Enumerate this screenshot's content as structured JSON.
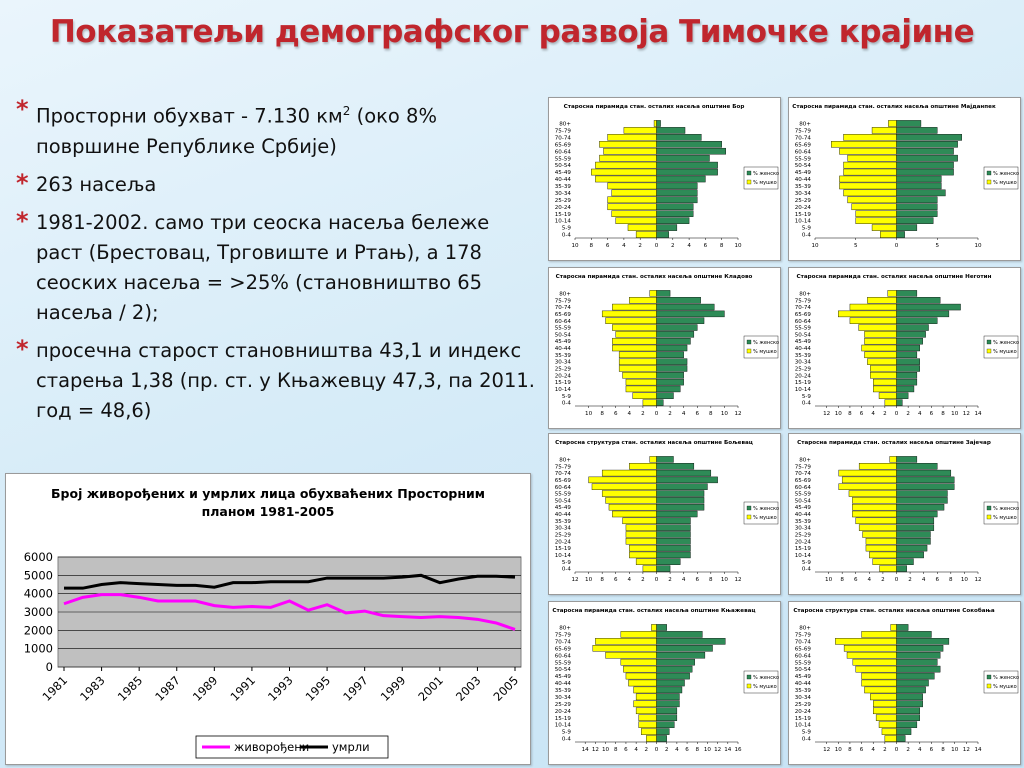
{
  "slide": {
    "title": "Показатељи демографског развоја Тимочке крајине",
    "bullets": [
      {
        "main": "Просторни обухват - 7.130 км",
        "sup": "2",
        "rest": " (око 8% површине Републике Србије)"
      },
      {
        "main": "263 насеља",
        "sup": "",
        "rest": ""
      },
      {
        "main": "1981-2002. само три сеоска насеља бележе раст (Брестовац, Трговиште и Ртањ), а 178 сеоских насеља = >25% (становништво 65 насеља / 2);",
        "sup": "",
        "rest": ""
      },
      {
        "main": "просечна старост становништва 43,1 и индекс старења 1,38 (пр. ст. у Књажевцу 47,3, па 2011. год = 48,6)",
        "sup": "",
        "rest": ""
      }
    ]
  },
  "colors": {
    "title": "#c0262d",
    "zensko": "#2e8b57",
    "musko": "#ffff00",
    "zivorodjeni": "#ff00ff",
    "umrli": "#000000",
    "plot_bg": "#c0c0c0"
  },
  "chart_data": [
    {
      "type": "line",
      "title": "Број живорођених и умрлих лица обухваћених Просторним планом 1981-2005",
      "x": [
        1981,
        1982,
        1983,
        1984,
        1985,
        1986,
        1987,
        1988,
        1989,
        1990,
        1991,
        1992,
        1993,
        1994,
        1995,
        1996,
        1997,
        1998,
        1999,
        2000,
        2001,
        2002,
        2003,
        2004,
        2005
      ],
      "xticks": [
        "1981",
        "1983",
        "1985",
        "1987",
        "1989",
        "1991",
        "1993",
        "1995",
        "1997",
        "1999",
        "2001",
        "2003",
        "2005"
      ],
      "ylim": [
        0,
        6000
      ],
      "yticks": [
        "0",
        "1000",
        "2000",
        "3000",
        "4000",
        "5000",
        "6000"
      ],
      "grid": true,
      "legend": "bottom",
      "series": [
        {
          "name": "живорођени",
          "color": "#ff00ff",
          "values": [
            3450,
            3800,
            3950,
            3950,
            3800,
            3600,
            3600,
            3600,
            3350,
            3250,
            3300,
            3250,
            3600,
            3100,
            3400,
            2950,
            3050,
            2800,
            2750,
            2700,
            2750,
            2700,
            2600,
            2400,
            2050
          ]
        },
        {
          "name": "умрли",
          "color": "#000000",
          "values": [
            4300,
            4300,
            4500,
            4600,
            4550,
            4500,
            4450,
            4450,
            4350,
            4600,
            4600,
            4650,
            4650,
            4650,
            4850,
            4850,
            4850,
            4850,
            4900,
            5000,
            4600,
            4800,
            4950,
            4950,
            4900
          ]
        }
      ]
    },
    {
      "type": "bar",
      "title": "Старосна пирамида стан. осталих насеља општине Бор",
      "categories": [
        "80+",
        "75-79",
        "70-74",
        "65-69",
        "60-64",
        "55-59",
        "50-54",
        "45-49",
        "40-44",
        "35-39",
        "30-34",
        "25-29",
        "20-24",
        "15-19",
        "10-14",
        "5-9",
        "0-4"
      ],
      "xticks": [
        "10",
        "8",
        "6",
        "4",
        "2",
        "0",
        "2",
        "4",
        "6",
        "8",
        "10"
      ],
      "xmax": 10,
      "series": [
        {
          "name": "% женско",
          "color": "#2e8b57",
          "values": [
            0.5,
            3.5,
            5.5,
            8.0,
            8.5,
            6.5,
            7.5,
            7.5,
            6.0,
            5.0,
            5.0,
            5.0,
            4.5,
            4.5,
            4.0,
            2.5,
            1.5
          ]
        },
        {
          "name": "% мушко",
          "color": "#ffff00",
          "values": [
            0.3,
            4.0,
            6.0,
            7.0,
            6.5,
            7.0,
            7.5,
            8.0,
            7.5,
            6.0,
            5.5,
            6.0,
            6.0,
            5.5,
            5.0,
            3.5,
            2.5
          ]
        }
      ]
    },
    {
      "type": "bar",
      "title": "Старосна пирамида стан. осталих насеља општине Мајданпек",
      "categories": [
        "80+",
        "75-79",
        "70-74",
        "65-69",
        "60-64",
        "55-59",
        "50-54",
        "45-49",
        "40-44",
        "35-39",
        "30-34",
        "25-29",
        "20-24",
        "15-19",
        "10-14",
        "5-9",
        "0-4"
      ],
      "xticks": [
        "10",
        "5",
        "0",
        "5",
        "10"
      ],
      "xmax": 10,
      "series": [
        {
          "name": "% женско",
          "color": "#2e8b57",
          "values": [
            3.0,
            5.0,
            8.0,
            7.5,
            7.0,
            7.5,
            7.0,
            7.0,
            5.5,
            5.5,
            6.0,
            5.0,
            5.0,
            5.0,
            4.5,
            2.5,
            1.0
          ]
        },
        {
          "name": "% мушко",
          "color": "#ffff00",
          "values": [
            1.0,
            3.0,
            6.5,
            8.0,
            7.0,
            6.0,
            6.5,
            6.5,
            7.0,
            7.0,
            6.5,
            6.0,
            5.5,
            5.0,
            5.0,
            3.0,
            2.0
          ]
        }
      ]
    },
    {
      "type": "bar",
      "title": "Старосна пирамида стан. осталих насеља општине Кладово",
      "categories": [
        "80+",
        "75-79",
        "70-74",
        "65-69",
        "60-64",
        "55-59",
        "50-54",
        "45-49",
        "40-44",
        "35-39",
        "30-34",
        "25-29",
        "20-24",
        "15-19",
        "10-14",
        "5-9",
        "0-4"
      ],
      "xticks": [
        "10",
        "8",
        "6",
        "4",
        "2",
        "0",
        "2",
        "4",
        "6",
        "8",
        "10",
        "12"
      ],
      "xmax": 12,
      "series": [
        {
          "name": "% женско",
          "color": "#2e8b57",
          "values": [
            2.0,
            6.5,
            8.5,
            10.0,
            7.0,
            6.0,
            5.5,
            5.0,
            4.5,
            4.0,
            4.5,
            4.5,
            4.0,
            4.0,
            3.5,
            2.5,
            1.0
          ]
        },
        {
          "name": "% мушко",
          "color": "#ffff00",
          "values": [
            1.0,
            4.0,
            6.5,
            8.0,
            7.5,
            6.5,
            6.0,
            6.5,
            6.5,
            5.5,
            5.5,
            5.5,
            5.0,
            4.5,
            4.5,
            3.5,
            2.0
          ]
        }
      ]
    },
    {
      "type": "bar",
      "title": "Старосна пирамида стан. осталих насеља општине Неготин",
      "categories": [
        "80+",
        "75-79",
        "70-74",
        "65-69",
        "60-64",
        "55-59",
        "50-54",
        "45-49",
        "40-44",
        "35-39",
        "30-34",
        "25-29",
        "20-24",
        "15-19",
        "10-14",
        "5-9",
        "0-4"
      ],
      "xticks": [
        "12",
        "10",
        "8",
        "6",
        "4",
        "2",
        "0",
        "2",
        "4",
        "6",
        "8",
        "10",
        "12",
        "14"
      ],
      "xmax": 14,
      "series": [
        {
          "name": "% женско",
          "color": "#2e8b57",
          "values": [
            3.5,
            7.5,
            11.0,
            9.0,
            7.0,
            5.5,
            5.0,
            4.5,
            4.0,
            3.5,
            4.0,
            4.0,
            3.5,
            3.5,
            3.0,
            2.0,
            1.0
          ]
        },
        {
          "name": "% мушко",
          "color": "#ffff00",
          "values": [
            1.5,
            5.0,
            8.0,
            10.0,
            8.0,
            6.5,
            5.5,
            5.5,
            6.0,
            5.5,
            5.0,
            4.5,
            4.5,
            4.0,
            4.0,
            3.0,
            2.0
          ]
        }
      ]
    },
    {
      "type": "bar",
      "title": "Старосна структура стан. осталих насеља општине Бољевац",
      "categories": [
        "80+",
        "75-79",
        "70-74",
        "65-69",
        "60-64",
        "55-59",
        "50-54",
        "45-49",
        "40-44",
        "35-39",
        "30-34",
        "25-29",
        "20-24",
        "15-19",
        "10-14",
        "5-9",
        "0-4"
      ],
      "xticks": [
        "12",
        "10",
        "8",
        "6",
        "4",
        "2",
        "0",
        "2",
        "4",
        "6",
        "8",
        "10",
        "12"
      ],
      "xmax": 12,
      "series": [
        {
          "name": "% женско",
          "color": "#2e8b57",
          "values": [
            2.5,
            5.5,
            8.0,
            9.0,
            7.5,
            7.0,
            7.0,
            7.0,
            6.0,
            5.0,
            5.0,
            5.0,
            5.0,
            5.0,
            5.0,
            3.5,
            2.0
          ]
        },
        {
          "name": "% мушко",
          "color": "#ffff00",
          "values": [
            1.0,
            4.0,
            8.0,
            10.0,
            9.5,
            8.0,
            7.5,
            7.0,
            6.5,
            5.0,
            4.5,
            4.5,
            4.5,
            4.0,
            4.0,
            3.0,
            2.0
          ]
        }
      ]
    },
    {
      "type": "bar",
      "title": "Старосна пирамида стан. осталих насеља општине Зајечар",
      "categories": [
        "80+",
        "75-79",
        "70-74",
        "65-69",
        "60-64",
        "55-59",
        "50-54",
        "45-49",
        "40-44",
        "35-39",
        "30-34",
        "25-29",
        "20-24",
        "15-19",
        "10-14",
        "5-9",
        "0-4"
      ],
      "xticks": [
        "10",
        "8",
        "6",
        "4",
        "2",
        "0",
        "2",
        "4",
        "6",
        "8",
        "10",
        "12"
      ],
      "xmax": 12,
      "series": [
        {
          "name": "% женско",
          "color": "#2e8b57",
          "values": [
            3.0,
            6.0,
            8.0,
            8.5,
            8.5,
            7.5,
            7.5,
            7.0,
            6.0,
            5.5,
            5.5,
            5.0,
            5.0,
            4.5,
            4.0,
            2.5,
            1.5
          ]
        },
        {
          "name": "% мушко",
          "color": "#ffff00",
          "values": [
            1.0,
            5.5,
            8.5,
            8.0,
            8.5,
            7.0,
            6.5,
            6.5,
            6.5,
            6.0,
            5.5,
            5.0,
            4.5,
            4.5,
            4.0,
            3.5,
            2.5
          ]
        }
      ]
    },
    {
      "type": "bar",
      "title": "Старосна пирамида стан. осталих насеља општине Књажевац",
      "categories": [
        "80+",
        "75-79",
        "70-74",
        "65-69",
        "60-64",
        "55-59",
        "50-54",
        "45-49",
        "40-44",
        "35-39",
        "30-34",
        "25-29",
        "20-24",
        "15-19",
        "10-14",
        "5-9",
        "0-4"
      ],
      "xticks": [
        "14",
        "12",
        "10",
        "8",
        "6",
        "4",
        "2",
        "0",
        "2",
        "4",
        "6",
        "8",
        "10",
        "12",
        "14",
        "16"
      ],
      "xmax": 16,
      "series": [
        {
          "name": "% женско",
          "color": "#2e8b57",
          "values": [
            2.0,
            9.0,
            13.5,
            11.0,
            9.5,
            7.5,
            7.0,
            6.5,
            5.5,
            5.0,
            4.5,
            4.5,
            4.0,
            4.0,
            3.5,
            2.5,
            2.0
          ]
        },
        {
          "name": "% мушко",
          "color": "#ffff00",
          "values": [
            1.0,
            7.0,
            12.0,
            12.5,
            10.0,
            7.0,
            6.5,
            6.0,
            5.5,
            4.5,
            4.0,
            4.5,
            4.0,
            3.5,
            3.5,
            3.0,
            2.0
          ]
        }
      ]
    },
    {
      "type": "bar",
      "title": "Старосна структура стан. осталих насеља општине Сокобања",
      "categories": [
        "80+",
        "75-79",
        "70-74",
        "65-69",
        "60-64",
        "55-59",
        "50-54",
        "45-49",
        "40-44",
        "35-39",
        "30-34",
        "25-29",
        "20-24",
        "15-19",
        "10-14",
        "5-9",
        "0-4"
      ],
      "xticks": [
        "12",
        "10",
        "8",
        "6",
        "4",
        "2",
        "0",
        "2",
        "4",
        "6",
        "8",
        "10",
        "12",
        "14"
      ],
      "xmax": 14,
      "series": [
        {
          "name": "% женско",
          "color": "#2e8b57",
          "values": [
            2.0,
            6.0,
            9.0,
            8.0,
            7.5,
            7.0,
            7.5,
            6.5,
            5.5,
            5.0,
            4.5,
            4.5,
            4.0,
            4.0,
            3.5,
            2.5,
            1.5
          ]
        },
        {
          "name": "% мушко",
          "color": "#ffff00",
          "values": [
            1.0,
            6.0,
            10.5,
            9.0,
            8.5,
            7.5,
            7.0,
            6.0,
            6.0,
            5.5,
            4.5,
            4.0,
            4.0,
            3.5,
            3.0,
            2.5,
            2.0
          ]
        }
      ]
    }
  ]
}
